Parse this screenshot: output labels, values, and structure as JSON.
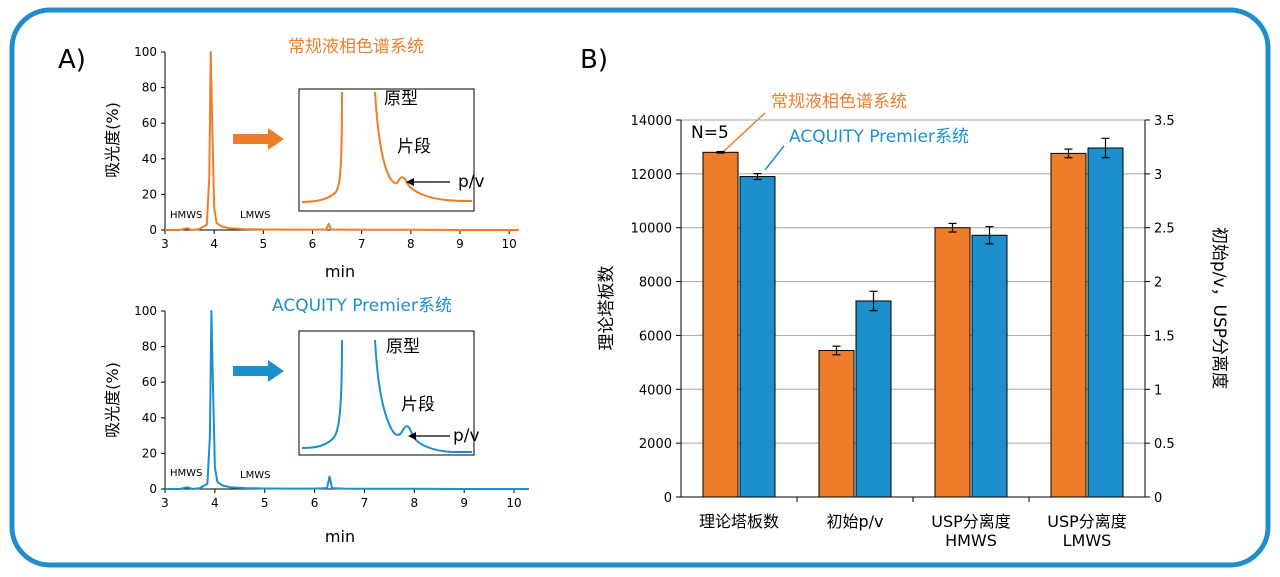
{
  "colors": {
    "frame": "#1f8ec9",
    "orange": "#ee7d2b",
    "blue": "#1c8fcd",
    "axis": "#000000",
    "grid": "#a6a6a6"
  },
  "panel_a": {
    "label": "A)",
    "orange_panel": {
      "title": "常规液相色谱系统",
      "ylabel": "吸光度(%)",
      "xlabel": "min",
      "hmws": "HMWS",
      "lmws": "LMWS",
      "inset_main": "原型",
      "inset_frag": "片段",
      "inset_pv": "p/v"
    },
    "blue_panel": {
      "title": "ACQUITY Premier系统",
      "ylabel": "吸光度(%)",
      "xlabel": "min",
      "hmws": "HMWS",
      "lmws": "LMWS",
      "inset_main": "原型",
      "inset_frag": "片段",
      "inset_pv": "p/v"
    }
  },
  "panel_b": {
    "label": "B)",
    "note": "N=5",
    "legend_orange": "常规液相色谱系统",
    "legend_blue": "ACQUITY Premier系统",
    "ylabel_left": "理论塔板数",
    "ylabel_right": "初始p/v，USP分离度"
  },
  "chart_data": [
    {
      "type": "line",
      "title": "常规液相色谱系统",
      "xlabel": "min",
      "ylabel": "吸光度(%)",
      "xlim": [
        3,
        10.2
      ],
      "ylim": [
        0,
        100
      ],
      "xticks": [
        3,
        4,
        5,
        6,
        7,
        8,
        9,
        10
      ],
      "yticks": [
        0,
        20,
        40,
        60,
        80,
        100
      ],
      "series": [
        {
          "name": "常规液相色谱系统",
          "x": [
            3.0,
            3.3,
            3.45,
            3.55,
            3.7,
            3.85,
            3.9,
            3.93,
            3.96,
            4.0,
            4.05,
            4.15,
            4.3,
            4.6,
            5.0,
            5.5,
            6.0,
            6.28,
            6.33,
            6.38,
            6.6,
            7.0,
            8.0,
            9.0,
            10.2
          ],
          "y": [
            0,
            0,
            1,
            0,
            0.5,
            3,
            30,
            100,
            60,
            12,
            4,
            2,
            1,
            0.5,
            0.3,
            0.2,
            0.2,
            0.3,
            3.5,
            0.3,
            0.2,
            0.1,
            0.1,
            0,
            0
          ]
        }
      ]
    },
    {
      "type": "line",
      "title": "ACQUITY Premier系统",
      "xlabel": "min",
      "ylabel": "吸光度(%)",
      "xlim": [
        3,
        10.3
      ],
      "ylim": [
        0,
        100
      ],
      "xticks": [
        3,
        4,
        5,
        6,
        7,
        8,
        9,
        10
      ],
      "yticks": [
        0,
        20,
        40,
        60,
        80,
        100
      ],
      "series": [
        {
          "name": "ACQUITY Premier系统",
          "x": [
            3.0,
            3.3,
            3.45,
            3.55,
            3.7,
            3.85,
            3.9,
            3.93,
            3.96,
            4.0,
            4.05,
            4.15,
            4.3,
            4.6,
            5.0,
            5.5,
            6.0,
            6.25,
            6.3,
            6.35,
            6.6,
            7.0,
            8.0,
            9.0,
            10.3
          ],
          "y": [
            0,
            0,
            1,
            0,
            0.5,
            3,
            30,
            100,
            60,
            12,
            4,
            2,
            1,
            0.5,
            0.3,
            0.2,
            0.2,
            0.5,
            7,
            0.5,
            0.2,
            0.1,
            0.1,
            0,
            0
          ]
        }
      ]
    },
    {
      "type": "bar",
      "categories": [
        "理论塔板数",
        "初始p/v",
        "USP分离度\nHMWS",
        "USP分离度\nLMWS"
      ],
      "series": [
        {
          "name": "常规液相色谱系统",
          "values": [
            12800,
            1.36,
            2.5,
            3.19
          ],
          "errors": [
            30,
            0.04,
            0.04,
            0.04
          ],
          "axis": [
            "left",
            "right",
            "right",
            "right"
          ]
        },
        {
          "name": "ACQUITY Premier系统",
          "values": [
            11900,
            1.82,
            2.43,
            3.24
          ],
          "errors": [
            110,
            0.09,
            0.08,
            0.09
          ],
          "axis": [
            "left",
            "right",
            "right",
            "right"
          ]
        }
      ],
      "ylabel_left": "理论塔板数",
      "ylabel_right": "初始p/v，USP分离度",
      "ylim_left": [
        0,
        14000
      ],
      "ylim_right": [
        0,
        3.5
      ],
      "yticks_left": [
        0,
        2000,
        4000,
        6000,
        8000,
        10000,
        12000,
        14000
      ],
      "yticks_right": [
        0,
        0.5,
        1,
        1.5,
        2,
        2.5,
        3,
        3.5
      ],
      "grid": true,
      "annotation": "N=5"
    }
  ]
}
